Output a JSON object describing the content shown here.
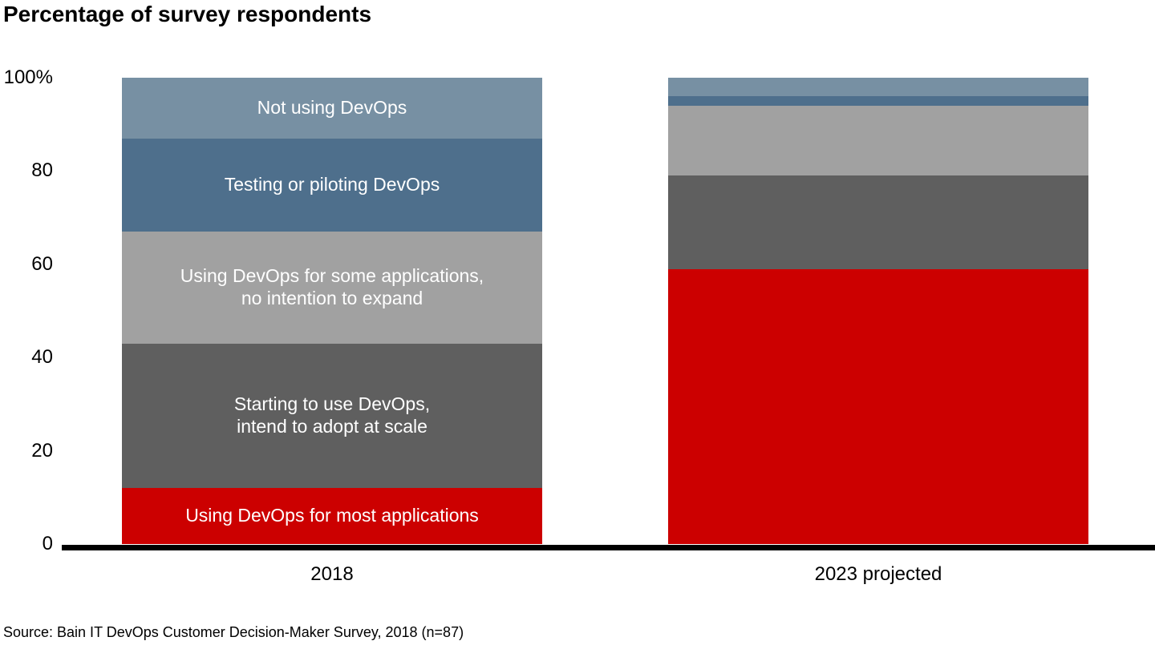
{
  "title": "Percentage of survey respondents",
  "source": "Source: Bain IT DevOps Customer Decision-Maker Survey, 2018 (n=87)",
  "colors": {
    "axis": "#000000",
    "text": "#000000",
    "bar_label_text": "#ffffff",
    "background": "#ffffff"
  },
  "chart_data": {
    "type": "bar",
    "stacked": true,
    "orientation": "vertical",
    "title": "Percentage of survey respondents",
    "categories": [
      "2018",
      "2023 projected"
    ],
    "series": [
      {
        "name": "Not using DevOps",
        "color": "#7790a3",
        "values": [
          13,
          4
        ],
        "label_lines": [
          "Not using DevOps"
        ]
      },
      {
        "name": "Testing or piloting DevOps",
        "color": "#4e6f8c",
        "values": [
          20,
          2
        ],
        "label_lines": [
          "Testing or piloting DevOps"
        ]
      },
      {
        "name": "Using DevOps for some applications, no intention to expand",
        "color": "#a1a1a1",
        "values": [
          24,
          15
        ],
        "label_lines": [
          "Using DevOps for some applications,",
          "no intention to expand"
        ]
      },
      {
        "name": "Starting to use DevOps, intend to adopt at scale",
        "color": "#5f5f5f",
        "values": [
          31,
          20
        ],
        "label_lines": [
          "Starting to use DevOps,",
          "intend to adopt at scale"
        ]
      },
      {
        "name": "Using DevOps for most applications",
        "color": "#cc0000",
        "values": [
          12,
          59
        ],
        "label_lines": [
          "Using DevOps for most applications"
        ]
      }
    ],
    "series_order_note": "top-to-bottom within each stacked column",
    "labels_shown_in_category": "2018",
    "y_ticks": [
      {
        "label": "100%",
        "value": 100
      },
      {
        "label": "80",
        "value": 80
      },
      {
        "label": "60",
        "value": 60
      },
      {
        "label": "40",
        "value": 40
      },
      {
        "label": "20",
        "value": 20
      },
      {
        "label": "0",
        "value": 0
      }
    ],
    "ylim": [
      0,
      100
    ],
    "grid": false,
    "legend": "none (labels inside first bar)"
  }
}
